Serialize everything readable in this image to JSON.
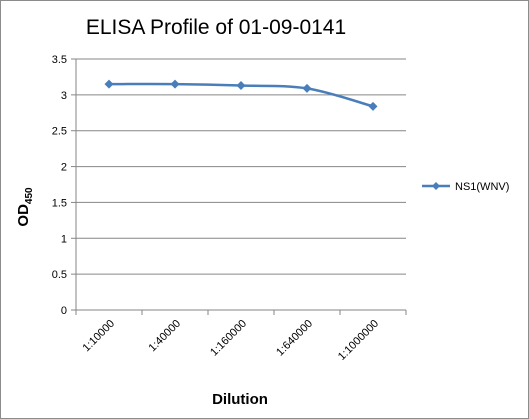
{
  "chart_data": {
    "type": "line",
    "title": "ELISA Profile of 01-09-0141",
    "xlabel": "Dilution",
    "ylabel": "OD",
    "ylabel_subscript": "450",
    "categories": [
      "1:10000",
      "1:40000",
      "1:160000",
      "1:640000",
      "1:1000000"
    ],
    "ylim": [
      0,
      3.5
    ],
    "yticks": [
      "0",
      "0.5",
      "1",
      "1.5",
      "2",
      "2.5",
      "3",
      "3.5"
    ],
    "grid": true,
    "legend_position": "right",
    "series": [
      {
        "name": "NS1(WNV)",
        "values": [
          3.15,
          3.15,
          3.13,
          3.09,
          2.84
        ],
        "color": "#4a7ebb",
        "marker": "diamond"
      }
    ]
  }
}
